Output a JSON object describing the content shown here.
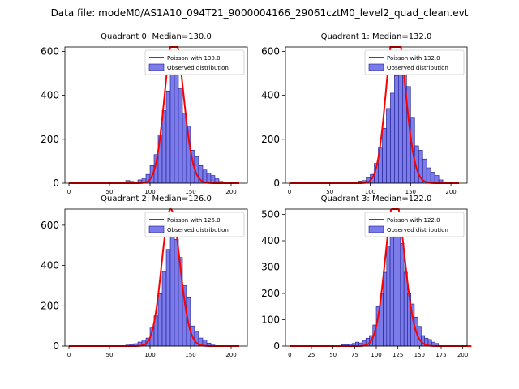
{
  "figure_title": "Data file: modeM0/AS1A10_094T21_9000004166_29061cztM0_level2_quad_clean.evt",
  "colors": {
    "poisson": "#ff0000",
    "hist_fill": "#7b7bea",
    "hist_edge": "#1a1a8c"
  },
  "chart_data": [
    {
      "type": "bar",
      "title": "Quadrant 0: Median=130.0",
      "xlim": [
        -5,
        220
      ],
      "ylim": [
        0,
        620
      ],
      "xticks": [
        0,
        50,
        100,
        150,
        200
      ],
      "yticks": [
        0,
        200,
        400,
        600
      ],
      "bin_width": 5,
      "bin_start": [
        70,
        75,
        80,
        85,
        90,
        95,
        100,
        105,
        110,
        115,
        120,
        125,
        130,
        135,
        140,
        145,
        150,
        155,
        160,
        165,
        170,
        175,
        180,
        185
      ],
      "counts": [
        12,
        8,
        5,
        15,
        20,
        40,
        80,
        130,
        220,
        330,
        420,
        580,
        510,
        430,
        320,
        260,
        150,
        120,
        80,
        60,
        45,
        35,
        20,
        8
      ],
      "poisson_mean": 130.0,
      "poisson_scale": 5,
      "legend": [
        "Poisson with 130.0",
        "Observed distribution"
      ]
    },
    {
      "type": "bar",
      "title": "Quadrant 1: Median=132.0",
      "xlim": [
        -5,
        220
      ],
      "ylim": [
        0,
        620
      ],
      "xticks": [
        0,
        50,
        100,
        150,
        200
      ],
      "yticks": [
        0,
        200,
        400,
        600
      ],
      "bin_width": 5,
      "bin_start": [
        80,
        85,
        90,
        95,
        100,
        105,
        110,
        115,
        120,
        125,
        130,
        135,
        140,
        145,
        150,
        155,
        160,
        165,
        170,
        175,
        180,
        185
      ],
      "counts": [
        5,
        10,
        12,
        25,
        40,
        90,
        160,
        250,
        340,
        410,
        490,
        560,
        520,
        440,
        300,
        170,
        150,
        110,
        70,
        50,
        35,
        15
      ],
      "poisson_mean": 132.0,
      "poisson_scale": 5,
      "legend": [
        "Poisson with 132.0",
        "Observed distribution"
      ]
    },
    {
      "type": "bar",
      "title": "Quadrant 2: Median=126.0",
      "xlim": [
        -5,
        220
      ],
      "ylim": [
        0,
        680
      ],
      "xticks": [
        0,
        50,
        100,
        150,
        200
      ],
      "yticks": [
        0,
        200,
        400,
        600
      ],
      "bin_width": 5,
      "bin_start": [
        70,
        75,
        80,
        85,
        90,
        95,
        100,
        105,
        110,
        115,
        120,
        125,
        130,
        135,
        140,
        145,
        150,
        155,
        160,
        165,
        170,
        175
      ],
      "counts": [
        5,
        8,
        12,
        20,
        30,
        40,
        90,
        150,
        260,
        370,
        480,
        590,
        530,
        440,
        300,
        240,
        100,
        70,
        40,
        30,
        15,
        5
      ],
      "poisson_mean": 126.0,
      "poisson_scale": 5,
      "legend": [
        "Poisson with 126.0",
        "Observed distribution"
      ]
    },
    {
      "type": "bar",
      "title": "Quadrant 3: Median=122.0",
      "xlim": [
        -5,
        205
      ],
      "ylim": [
        0,
        520
      ],
      "xticks": [
        0,
        25,
        50,
        75,
        100,
        125,
        150,
        175,
        200
      ],
      "yticks": [
        0,
        100,
        200,
        300,
        400,
        500
      ],
      "bin_width": 4,
      "bin_start": [
        60,
        64,
        68,
        72,
        76,
        80,
        84,
        88,
        92,
        96,
        100,
        104,
        108,
        112,
        116,
        120,
        124,
        128,
        132,
        136,
        140,
        144,
        148,
        152,
        156,
        160,
        164,
        168
      ],
      "counts": [
        5,
        5,
        8,
        10,
        15,
        12,
        20,
        30,
        40,
        80,
        150,
        200,
        280,
        380,
        420,
        460,
        450,
        390,
        280,
        200,
        160,
        110,
        75,
        40,
        30,
        25,
        15,
        10
      ],
      "poisson_mean": 122.0,
      "poisson_scale": 4,
      "legend": [
        "Poisson with 122.0",
        "Observed distribution"
      ]
    }
  ]
}
